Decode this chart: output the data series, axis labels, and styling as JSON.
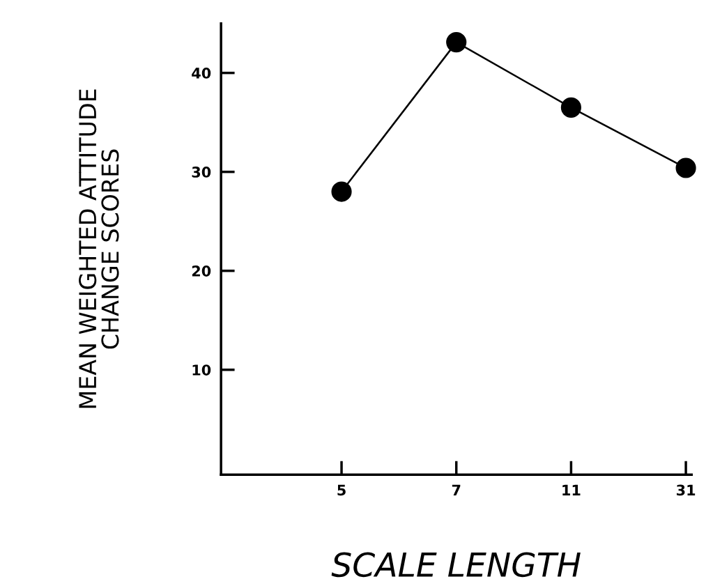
{
  "chart_data": {
    "type": "line",
    "xlabel": "SCALE LENGTH",
    "ylabel": "MEAN WEIGHTED ATTITUDE\nCHANGE SCORES",
    "categories": [
      "5",
      "7",
      "11",
      "31"
    ],
    "series": [
      {
        "color": "#000000",
        "values": [
          28.0,
          43.1,
          36.5,
          30.4
        ]
      }
    ],
    "ylim": [
      -0.6,
      45
    ],
    "yticks": [
      10,
      20,
      30,
      40
    ],
    "marker": "circle",
    "line_style": "solid",
    "grid": false,
    "legend": false
  }
}
